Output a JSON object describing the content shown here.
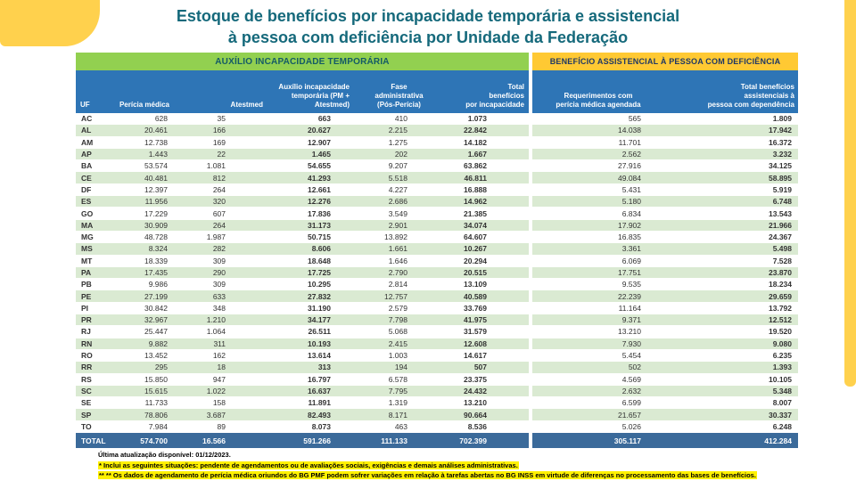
{
  "title": {
    "line1": "Estoque de benefícios por incapacidade temporária e assistencial",
    "line2": "à pessoa com deficiência por Unidade da Federação"
  },
  "sections": {
    "left": "AUXÍLIO INCAPACIDADE TEMPORÁRIA",
    "right": "BENEFÍCIO ASSISTENCIAL À PESSOA COM DEFICIÊNCIA"
  },
  "headers": [
    "UF",
    "Perícia médica",
    "Atestmed",
    "Auxílio incapacidade\ntemporária (PM +\nAtestmed)",
    "Fase\nadministrativa\n(Pós-Perícia)",
    "Total\nbenefícios\npor incapacidade",
    "Requerimentos com\nperícia médica agendada",
    "Total benefícios\nassistenciais à\npessoa com dependência"
  ],
  "footnotes": [
    "Última atualização disponível:  01/12/2023.",
    "* Inclui as seguintes situações: pendente de agendamentos ou de avaliações sociais, exigências e demais análises administrativas.",
    "** ** Os dados de agendamento de perícia médica oriundos do BG PMF podem sofrer variações em relação à tarefas abertas no BG INSS em virtude de diferenças no processamento das bases de benefícios."
  ],
  "colors": {
    "title": "#15697B",
    "section_left_bg": "#92D050",
    "section_right_bg": "#FFC933",
    "column_header_bg": "#2E75B6",
    "alt_row_bg": "#DAEAD2",
    "total_row_bg": "#3B6A9A",
    "accent_yellow": "#FFD14D",
    "footnote_highlight": "#FFF100"
  },
  "chart_data": {
    "type": "table",
    "title": "Estoque de benefícios por incapacidade temporária e assistencial à pessoa com deficiência por Unidade da Federação",
    "section_left": "AUXÍLIO INCAPACIDADE TEMPORÁRIA",
    "section_right": "BENEFÍCIO ASSISTENCIAL À PESSOA COM DEFICIÊNCIA",
    "columns": [
      "UF",
      "Perícia médica",
      "Atestmed",
      "Auxílio incapacidade temporária (PM + Atestmed)",
      "Fase administrativa (Pós-Perícia)",
      "Total benefícios por incapacidade",
      "Requerimentos com perícia médica agendada",
      "Total benefícios assistenciais à pessoa com dependência"
    ],
    "rows": [
      [
        "AC",
        "628",
        "35",
        "663",
        "410",
        "1.073",
        "565",
        "1.809"
      ],
      [
        "AL",
        "20.461",
        "166",
        "20.627",
        "2.215",
        "22.842",
        "14.038",
        "17.942"
      ],
      [
        "AM",
        "12.738",
        "169",
        "12.907",
        "1.275",
        "14.182",
        "11.701",
        "16.372"
      ],
      [
        "AP",
        "1.443",
        "22",
        "1.465",
        "202",
        "1.667",
        "2.562",
        "3.232"
      ],
      [
        "BA",
        "53.574",
        "1.081",
        "54.655",
        "9.207",
        "63.862",
        "27.916",
        "34.125"
      ],
      [
        "CE",
        "40.481",
        "812",
        "41.293",
        "5.518",
        "46.811",
        "49.084",
        "58.895"
      ],
      [
        "DF",
        "12.397",
        "264",
        "12.661",
        "4.227",
        "16.888",
        "5.431",
        "5.919"
      ],
      [
        "ES",
        "11.956",
        "320",
        "12.276",
        "2.686",
        "14.962",
        "5.180",
        "6.748"
      ],
      [
        "GO",
        "17.229",
        "607",
        "17.836",
        "3.549",
        "21.385",
        "6.834",
        "13.543"
      ],
      [
        "MA",
        "30.909",
        "264",
        "31.173",
        "2.901",
        "34.074",
        "17.902",
        "21.966"
      ],
      [
        "MG",
        "48.728",
        "1.987",
        "50.715",
        "13.892",
        "64.607",
        "16.835",
        "24.367"
      ],
      [
        "MS",
        "8.324",
        "282",
        "8.606",
        "1.661",
        "10.267",
        "3.361",
        "5.498"
      ],
      [
        "MT",
        "18.339",
        "309",
        "18.648",
        "1.646",
        "20.294",
        "6.069",
        "7.528"
      ],
      [
        "PA",
        "17.435",
        "290",
        "17.725",
        "2.790",
        "20.515",
        "17.751",
        "23.870"
      ],
      [
        "PB",
        "9.986",
        "309",
        "10.295",
        "2.814",
        "13.109",
        "9.535",
        "18.234"
      ],
      [
        "PE",
        "27.199",
        "633",
        "27.832",
        "12.757",
        "40.589",
        "22.239",
        "29.659"
      ],
      [
        "PI",
        "30.842",
        "348",
        "31.190",
        "2.579",
        "33.769",
        "11.164",
        "13.792"
      ],
      [
        "PR",
        "32.967",
        "1.210",
        "34.177",
        "7.798",
        "41.975",
        "9.371",
        "12.512"
      ],
      [
        "RJ",
        "25.447",
        "1.064",
        "26.511",
        "5.068",
        "31.579",
        "13.210",
        "19.520"
      ],
      [
        "RN",
        "9.882",
        "311",
        "10.193",
        "2.415",
        "12.608",
        "7.930",
        "9.080"
      ],
      [
        "RO",
        "13.452",
        "162",
        "13.614",
        "1.003",
        "14.617",
        "5.454",
        "6.235"
      ],
      [
        "RR",
        "295",
        "18",
        "313",
        "194",
        "507",
        "502",
        "1.393"
      ],
      [
        "RS",
        "15.850",
        "947",
        "16.797",
        "6.578",
        "23.375",
        "4.569",
        "10.105"
      ],
      [
        "SC",
        "15.615",
        "1.022",
        "16.637",
        "7.795",
        "24.432",
        "2.632",
        "5.348"
      ],
      [
        "SE",
        "11.733",
        "158",
        "11.891",
        "1.319",
        "13.210",
        "6.599",
        "8.007"
      ],
      [
        "SP",
        "78.806",
        "3.687",
        "82.493",
        "8.171",
        "90.664",
        "21.657",
        "30.337"
      ],
      [
        "TO",
        "7.984",
        "89",
        "8.073",
        "463",
        "8.536",
        "5.026",
        "6.248"
      ]
    ],
    "total_row": [
      "TOTAL",
      "574.700",
      "16.566",
      "591.266",
      "111.133",
      "702.399",
      "305.117",
      "412.284"
    ]
  }
}
